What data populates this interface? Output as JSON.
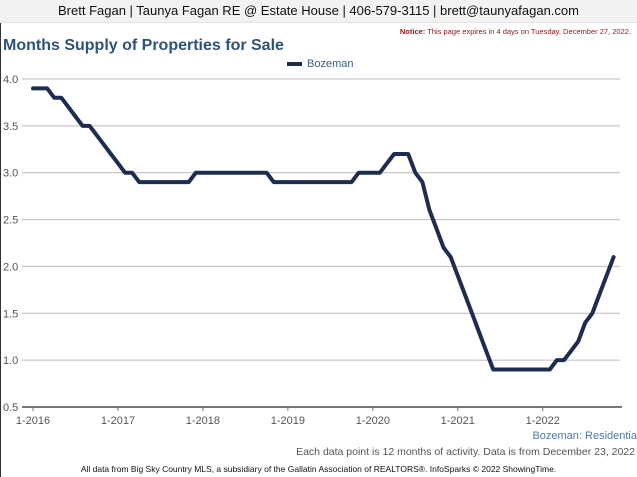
{
  "header": {
    "contact_line": "Brett Fagan | Taunya Fagan RE @ Estate House | 406-579-3115 | brett@taunyafagan.com",
    "notice_label": "Notice:",
    "notice_text": " This page expires in 4 days on Tuesday, December 27, 2022."
  },
  "colors": {
    "series_line": "#1c2d4f",
    "title": "#2e5379",
    "notice": "#8b1a1a",
    "gridline": "#bbbbbb",
    "axis": "#777777"
  },
  "chart_data": {
    "type": "line",
    "title": "Months Supply of Properties for Sale",
    "xlabel": "",
    "ylabel": "",
    "ylim": [
      0.5,
      4.0
    ],
    "yticks": [
      "4.0",
      "3.5",
      "3.0",
      "2.5",
      "2.0",
      "1.5",
      "1.0",
      "0.5"
    ],
    "ytick_values": [
      4.0,
      3.5,
      3.0,
      2.5,
      2.0,
      1.5,
      1.0,
      0.5
    ],
    "xticks": [
      "1-2016",
      "1-2017",
      "1-2018",
      "1-2019",
      "1-2020",
      "1-2021",
      "1-2022"
    ],
    "xtick_month_index": [
      0,
      12,
      24,
      36,
      48,
      60,
      72
    ],
    "x_start": "1-2016",
    "x_end": "11-2022",
    "grid": true,
    "legend_position": "top-center",
    "series": [
      {
        "name": "Bozeman",
        "values": [
          3.9,
          3.9,
          3.9,
          3.8,
          3.8,
          3.7,
          3.6,
          3.5,
          3.5,
          3.4,
          3.3,
          3.2,
          3.1,
          3.0,
          3.0,
          2.9,
          2.9,
          2.9,
          2.9,
          2.9,
          2.9,
          2.9,
          2.9,
          3.0,
          3.0,
          3.0,
          3.0,
          3.0,
          3.0,
          3.0,
          3.0,
          3.0,
          3.0,
          3.0,
          2.9,
          2.9,
          2.9,
          2.9,
          2.9,
          2.9,
          2.9,
          2.9,
          2.9,
          2.9,
          2.9,
          2.9,
          3.0,
          3.0,
          3.0,
          3.0,
          3.1,
          3.2,
          3.2,
          3.2,
          3.0,
          2.9,
          2.6,
          2.4,
          2.2,
          2.1,
          1.9,
          1.7,
          1.5,
          1.3,
          1.1,
          0.9,
          0.9,
          0.9,
          0.9,
          0.9,
          0.9,
          0.9,
          0.9,
          0.9,
          1.0,
          1.0,
          1.1,
          1.2,
          1.4,
          1.5,
          1.7,
          1.9,
          2.1
        ]
      }
    ],
    "source_label": "Bozeman: Residentia",
    "data_note": "Each data point is 12 months of activity. Data is from December 23, 2022"
  },
  "footer": {
    "text": "All data from Big Sky Country MLS, a subsidiary of the Gallatin Association of REALTORS®. InfoSparks © 2022 ShowingTime."
  }
}
